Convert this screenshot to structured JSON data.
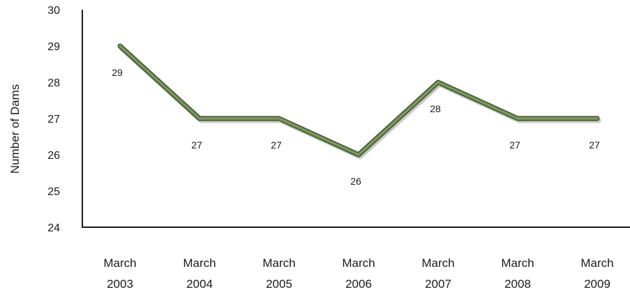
{
  "chart_data": {
    "type": "line",
    "title": "",
    "xlabel": "",
    "ylabel": "Number of Dams",
    "categories": [
      [
        "March",
        "2003"
      ],
      [
        "March",
        "2004"
      ],
      [
        "March",
        "2005"
      ],
      [
        "March",
        "2006"
      ],
      [
        "March",
        "2007"
      ],
      [
        "March",
        "2008"
      ],
      [
        "March",
        "2009"
      ]
    ],
    "series": [
      {
        "values": [
          29,
          27,
          27,
          26,
          28,
          27,
          27
        ]
      }
    ],
    "data_labels": [
      "29",
      "27",
      "27",
      "26",
      "28",
      "27",
      "27"
    ],
    "ylim": [
      24,
      30
    ],
    "yticks": [
      24,
      25,
      26,
      27,
      28,
      29,
      30
    ],
    "grid": false,
    "legend": "none",
    "colors": {
      "line_main": "#7a9460",
      "line_dark": "#3b5326",
      "line_shadow": "#9a9a9a",
      "axis": "#1a1a1a"
    }
  }
}
